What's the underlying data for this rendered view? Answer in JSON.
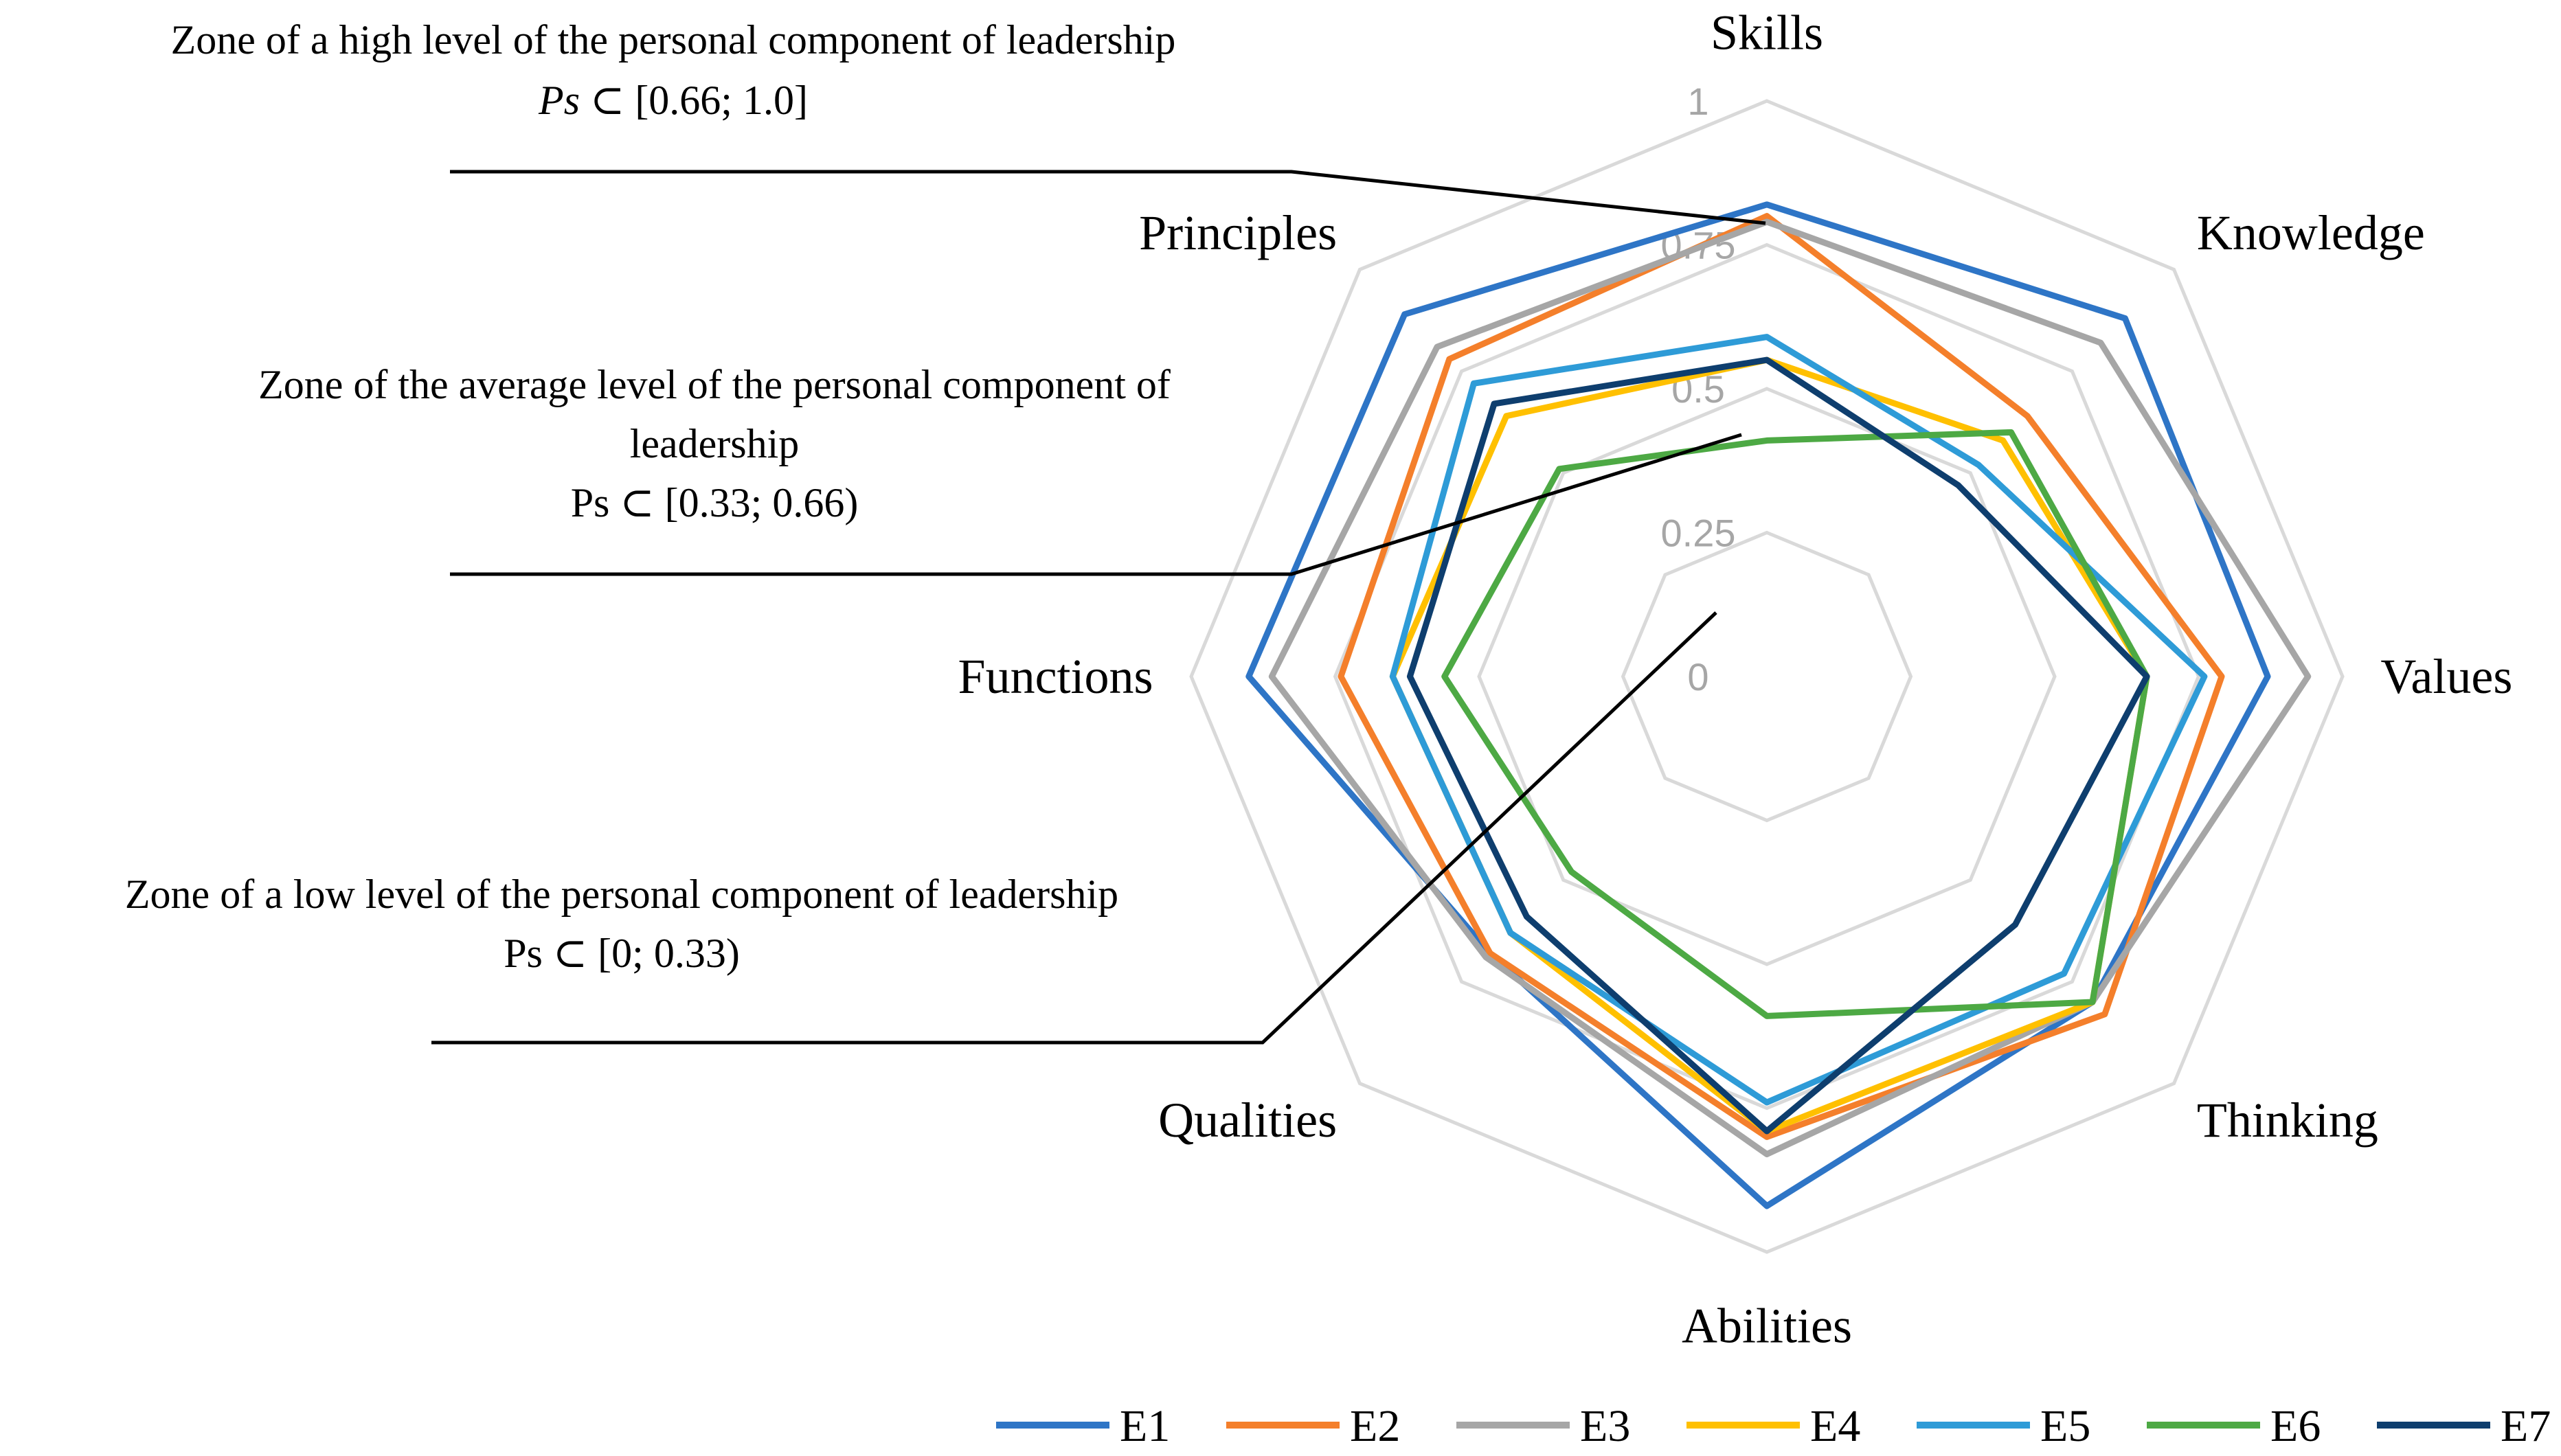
{
  "chart_data": {
    "type": "radar",
    "axes": [
      "Skills",
      "Knowledge",
      "Values",
      "Thinking",
      "Abilities",
      "Qualities",
      "Functions",
      "Principles"
    ],
    "r_ticks": [
      0,
      0.25,
      0.5,
      0.75,
      1
    ],
    "r_tick_labels": [
      "0",
      "0.25",
      "0.5",
      "0.75",
      "1"
    ],
    "rlim": [
      0,
      1
    ],
    "grid": true,
    "legend_position": "bottom",
    "series": [
      {
        "name": "E1",
        "color": "#2E75C6",
        "values": [
          0.82,
          0.88,
          0.87,
          0.8,
          0.92,
          0.68,
          0.9,
          0.89
        ]
      },
      {
        "name": "E2",
        "color": "#F47F2B",
        "values": [
          0.8,
          0.64,
          0.79,
          0.83,
          0.8,
          0.68,
          0.74,
          0.78
        ]
      },
      {
        "name": "E3",
        "color": "#A6A6A6",
        "values": [
          0.79,
          0.82,
          0.94,
          0.8,
          0.83,
          0.69,
          0.86,
          0.81
        ]
      },
      {
        "name": "E4",
        "color": "#FFC000",
        "values": [
          0.55,
          0.58,
          0.66,
          0.8,
          0.79,
          0.63,
          0.65,
          0.64
        ]
      },
      {
        "name": "E5",
        "color": "#2E9BD7",
        "values": [
          0.59,
          0.52,
          0.76,
          0.73,
          0.74,
          0.63,
          0.65,
          0.72
        ]
      },
      {
        "name": "E6",
        "color": "#4DA944",
        "values": [
          0.41,
          0.6,
          0.66,
          0.8,
          0.59,
          0.48,
          0.56,
          0.51
        ]
      },
      {
        "name": "E7",
        "color": "#0E3E6E",
        "values": [
          0.55,
          0.47,
          0.66,
          0.61,
          0.79,
          0.59,
          0.62,
          0.67
        ]
      }
    ],
    "annotations": [
      {
        "line1": "Zone of a high level of the personal component of leadership",
        "line2_italic": "Ps",
        "line2_rest": " ⊂ [0.66; 1.0]"
      },
      {
        "line1": "Zone of the average level of the personal component of",
        "line2": "leadership",
        "line3": "Ps ⊂ [0.33; 0.66)"
      },
      {
        "line1": "Zone of a low level of the personal component of leadership",
        "line2": "Ps ⊂ [0; 0.33)"
      }
    ]
  }
}
